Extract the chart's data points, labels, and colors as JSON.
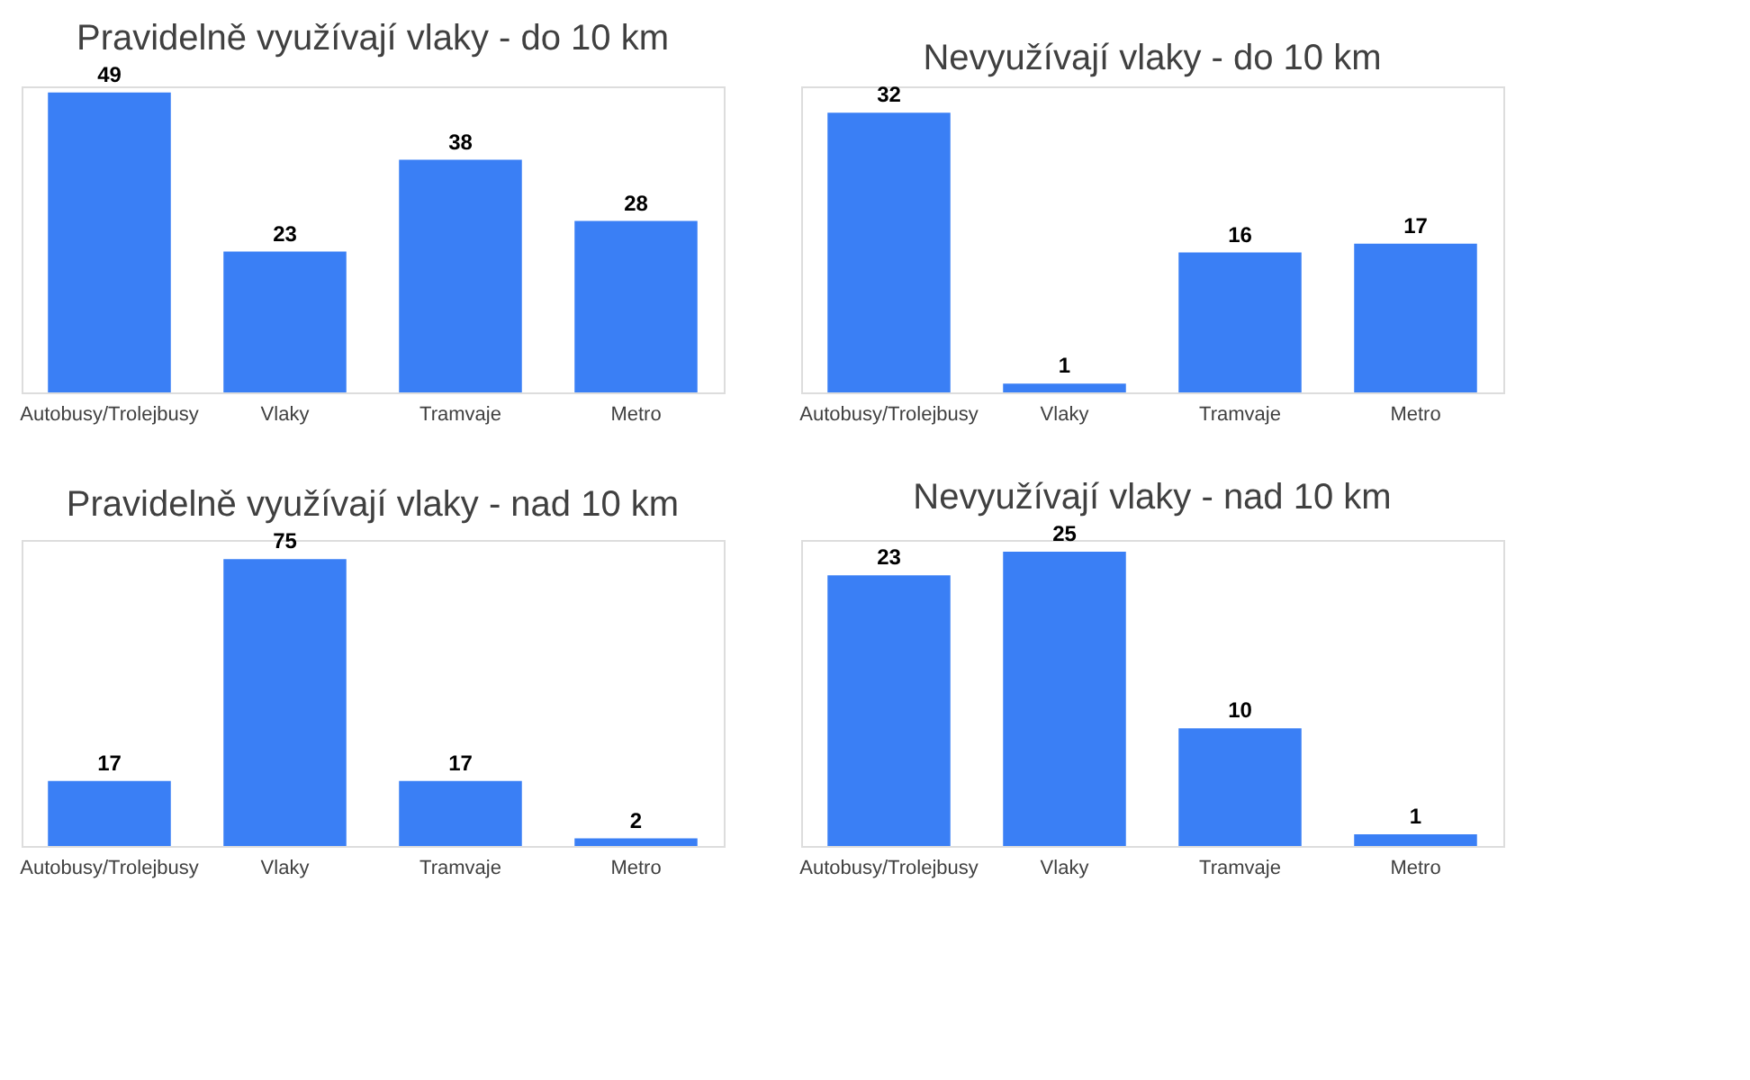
{
  "chart_data": [
    {
      "type": "bar",
      "title": "Pravidelně využívají vlaky - do 10 km",
      "categories": [
        "Autobusy/Trolejbusy",
        "Vlaky",
        "Tramvaje",
        "Metro"
      ],
      "values": [
        49,
        23,
        38,
        28
      ],
      "color": "#3a7ff5",
      "data_labels": true
    },
    {
      "type": "bar",
      "title": "Nevyužívají vlaky - do 10 km",
      "categories": [
        "Autobusy/Trolejbusy",
        "Vlaky",
        "Tramvaje",
        "Metro"
      ],
      "values": [
        32,
        1,
        16,
        17
      ],
      "color": "#3a7ff5",
      "data_labels": true
    },
    {
      "type": "bar",
      "title": "Pravidelně využívají vlaky - nad 10 km",
      "categories": [
        "Autobusy/Trolejbusy",
        "Vlaky",
        "Tramvaje",
        "Metro"
      ],
      "values": [
        17,
        75,
        17,
        2
      ],
      "color": "#3a7ff5",
      "data_labels": true
    },
    {
      "type": "bar",
      "title": "Nevyužívají vlaky - nad 10 km",
      "categories": [
        "Autobusy/Trolejbusy",
        "Vlaky",
        "Tramvaje",
        "Metro"
      ],
      "values": [
        23,
        25,
        10,
        1
      ],
      "color": "#3a7ff5",
      "data_labels": true
    }
  ]
}
